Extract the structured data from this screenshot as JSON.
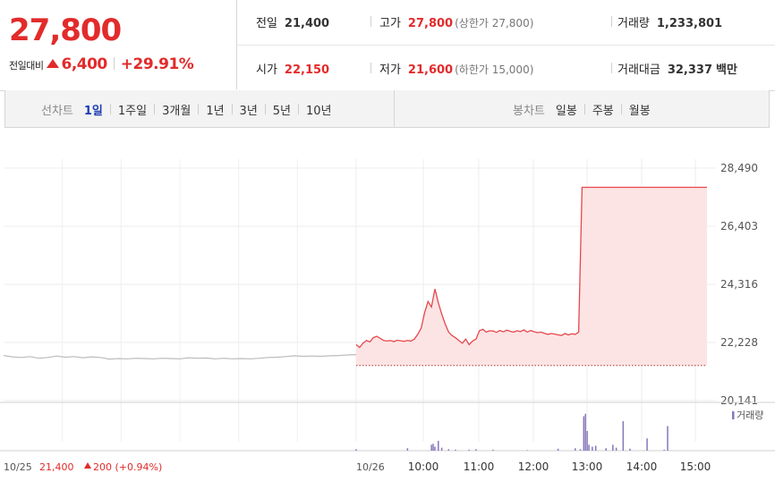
{
  "quote": {
    "price": "27,800",
    "change_label": "전일대비",
    "change_value": "6,400",
    "change_pct": "+29.91%",
    "up_color": "#e22b2b"
  },
  "stats": {
    "prev_close": {
      "label": "전일",
      "value": "21,400"
    },
    "high": {
      "label": "고가",
      "value": "27,800",
      "sub": "(상한가 27,800)"
    },
    "volume": {
      "label": "거래량",
      "value": "1,233,801"
    },
    "open": {
      "label": "시가",
      "value": "22,150"
    },
    "low": {
      "label": "저가",
      "value": "21,600",
      "sub": "(하한가 15,000)"
    },
    "amount": {
      "label": "거래대금",
      "value": "32,337",
      "unit": "백만"
    }
  },
  "tabs": {
    "line_label": "선차트",
    "line_tabs": [
      "1일",
      "1주일",
      "3개월",
      "1년",
      "3년",
      "5년",
      "10년"
    ],
    "active_tab": "1일",
    "candle_label": "봉차트",
    "candle_tabs": [
      "일봉",
      "주봉",
      "월봉"
    ]
  },
  "chart_data": {
    "type": "line",
    "prev_day": {
      "date": "10/25",
      "close": "21,400",
      "change": "200",
      "change_pct": "(+0.94%)",
      "color": "#bbbbbb",
      "points": [
        [
          0,
          21760
        ],
        [
          3,
          21710
        ],
        [
          6,
          21690
        ],
        [
          9,
          21720
        ],
        [
          12,
          21660
        ],
        [
          15,
          21690
        ],
        [
          18,
          21740
        ],
        [
          21,
          21700
        ],
        [
          24,
          21720
        ],
        [
          27,
          21680
        ],
        [
          30,
          21710
        ],
        [
          33,
          21690
        ],
        [
          36,
          21630
        ],
        [
          39,
          21650
        ],
        [
          42,
          21640
        ],
        [
          45,
          21660
        ],
        [
          48,
          21650
        ],
        [
          51,
          21640
        ],
        [
          54,
          21660
        ],
        [
          57,
          21650
        ],
        [
          60,
          21640
        ],
        [
          63,
          21680
        ],
        [
          66,
          21660
        ],
        [
          69,
          21670
        ],
        [
          72,
          21640
        ],
        [
          75,
          21660
        ],
        [
          78,
          21640
        ],
        [
          81,
          21650
        ],
        [
          84,
          21640
        ],
        [
          87,
          21660
        ],
        [
          90,
          21690
        ],
        [
          93,
          21700
        ],
        [
          96,
          21720
        ],
        [
          99,
          21750
        ],
        [
          102,
          21730
        ],
        [
          105,
          21740
        ],
        [
          108,
          21730
        ],
        [
          111,
          21750
        ],
        [
          114,
          21760
        ],
        [
          117,
          21780
        ],
        [
          120,
          21790
        ]
      ]
    },
    "today": {
      "date": "10/26",
      "color": "#e5484d",
      "fill": "#fde4e4",
      "points": [
        [
          0,
          22150
        ],
        [
          2,
          22050
        ],
        [
          4,
          22200
        ],
        [
          6,
          22300
        ],
        [
          8,
          22250
        ],
        [
          10,
          22400
        ],
        [
          12,
          22450
        ],
        [
          14,
          22380
        ],
        [
          16,
          22300
        ],
        [
          18,
          22280
        ],
        [
          20,
          22300
        ],
        [
          22,
          22260
        ],
        [
          24,
          22310
        ],
        [
          26,
          22290
        ],
        [
          28,
          22270
        ],
        [
          30,
          22300
        ],
        [
          32,
          22280
        ],
        [
          34,
          22350
        ],
        [
          36,
          22520
        ],
        [
          38,
          22750
        ],
        [
          40,
          23300
        ],
        [
          42,
          23700
        ],
        [
          44,
          23500
        ],
        [
          46,
          24150
        ],
        [
          48,
          23650
        ],
        [
          50,
          23250
        ],
        [
          52,
          22900
        ],
        [
          54,
          22600
        ],
        [
          56,
          22480
        ],
        [
          58,
          22400
        ],
        [
          60,
          22300
        ],
        [
          62,
          22200
        ],
        [
          64,
          22350
        ],
        [
          66,
          22150
        ],
        [
          68,
          22280
        ],
        [
          70,
          22350
        ],
        [
          72,
          22650
        ],
        [
          74,
          22700
        ],
        [
          76,
          22600
        ],
        [
          78,
          22650
        ],
        [
          80,
          22640
        ],
        [
          82,
          22590
        ],
        [
          84,
          22660
        ],
        [
          86,
          22610
        ],
        [
          88,
          22670
        ],
        [
          90,
          22630
        ],
        [
          92,
          22600
        ],
        [
          94,
          22650
        ],
        [
          96,
          22620
        ],
        [
          98,
          22680
        ],
        [
          100,
          22600
        ],
        [
          102,
          22660
        ],
        [
          104,
          22610
        ],
        [
          106,
          22580
        ],
        [
          108,
          22600
        ],
        [
          110,
          22560
        ],
        [
          112,
          22520
        ],
        [
          114,
          22550
        ],
        [
          116,
          22530
        ],
        [
          118,
          22500
        ],
        [
          120,
          22480
        ],
        [
          122,
          22550
        ],
        [
          124,
          22500
        ],
        [
          126,
          22540
        ],
        [
          128,
          22520
        ],
        [
          130,
          22600
        ],
        [
          132,
          27800
        ],
        [
          134,
          27800
        ],
        [
          148,
          27800
        ],
        [
          170,
          27800
        ],
        [
          190,
          27800
        ],
        [
          205,
          27800
        ]
      ],
      "volume_spikes": [
        [
          0,
          3
        ],
        [
          30,
          5
        ],
        [
          44,
          12
        ],
        [
          45,
          14
        ],
        [
          46,
          8
        ],
        [
          48,
          20
        ],
        [
          50,
          6
        ],
        [
          54,
          3
        ],
        [
          58,
          2
        ],
        [
          66,
          2
        ],
        [
          70,
          3
        ],
        [
          80,
          2
        ],
        [
          100,
          1
        ],
        [
          118,
          4
        ],
        [
          128,
          5
        ],
        [
          131,
          3
        ],
        [
          133,
          70
        ],
        [
          134,
          75
        ],
        [
          135,
          40
        ],
        [
          136,
          12
        ],
        [
          138,
          8
        ],
        [
          140,
          10
        ],
        [
          146,
          5
        ],
        [
          150,
          12
        ],
        [
          152,
          6
        ],
        [
          156,
          60
        ],
        [
          160,
          4
        ],
        [
          170,
          25
        ],
        [
          180,
          2
        ],
        [
          182,
          50
        ]
      ]
    },
    "prev_close_line": 21400,
    "y_ticks": [
      "28,490",
      "26,403",
      "24,316",
      "22,228",
      "20,141"
    ],
    "ylim": [
      20141,
      28490
    ],
    "x_ticks": [
      "10:00",
      "11:00",
      "12:00",
      "13:00",
      "14:00",
      "15:00"
    ],
    "volume_legend": "거래량",
    "volume_color": "#8877bb",
    "grid": true
  }
}
